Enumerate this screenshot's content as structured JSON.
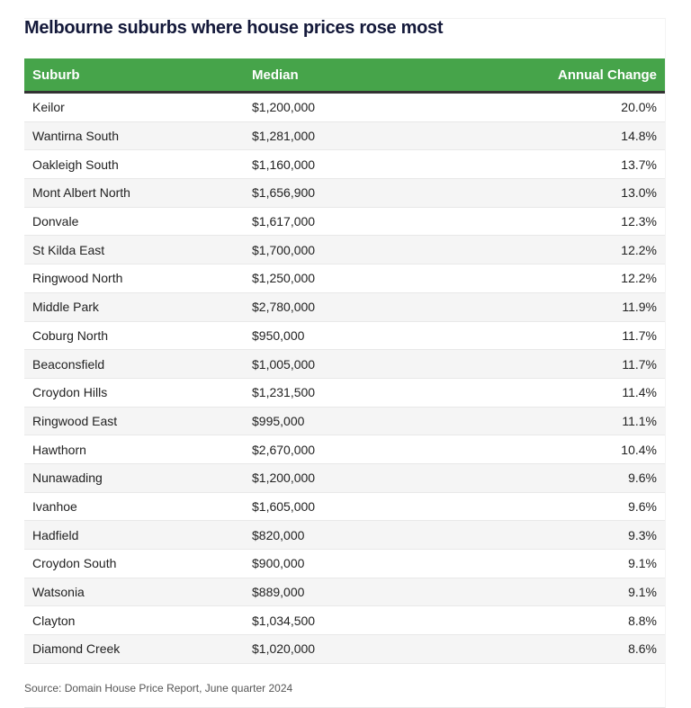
{
  "title": "Melbourne suburbs where house prices rose most",
  "columns": [
    "Suburb",
    "Median",
    "Annual Change"
  ],
  "rows": [
    [
      "Keilor",
      "$1,200,000",
      "20.0%"
    ],
    [
      "Wantirna South",
      "$1,281,000",
      "14.8%"
    ],
    [
      "Oakleigh South",
      "$1,160,000",
      "13.7%"
    ],
    [
      "Mont Albert North",
      "$1,656,900",
      "13.0%"
    ],
    [
      "Donvale",
      "$1,617,000",
      "12.3%"
    ],
    [
      "St Kilda East",
      "$1,700,000",
      "12.2%"
    ],
    [
      "Ringwood North",
      "$1,250,000",
      "12.2%"
    ],
    [
      "Middle Park",
      "$2,780,000",
      "11.9%"
    ],
    [
      "Coburg North",
      "$950,000",
      "11.7%"
    ],
    [
      "Beaconsfield",
      "$1,005,000",
      "11.7%"
    ],
    [
      "Croydon Hills",
      "$1,231,500",
      "11.4%"
    ],
    [
      "Ringwood East",
      "$995,000",
      "11.1%"
    ],
    [
      "Hawthorn",
      "$2,670,000",
      "10.4%"
    ],
    [
      "Nunawading",
      "$1,200,000",
      "9.6%"
    ],
    [
      "Ivanhoe",
      "$1,605,000",
      "9.6%"
    ],
    [
      "Hadfield",
      "$820,000",
      "9.3%"
    ],
    [
      "Croydon South",
      "$900,000",
      "9.1%"
    ],
    [
      "Watsonia",
      "$889,000",
      "9.1%"
    ],
    [
      "Clayton",
      "$1,034,500",
      "8.8%"
    ],
    [
      "Diamond Creek",
      "$1,020,000",
      "8.6%"
    ]
  ],
  "source": "Source: Domain House Price Report, June quarter 2024",
  "colors": {
    "header": "#46a44a",
    "title": "#14193a"
  }
}
